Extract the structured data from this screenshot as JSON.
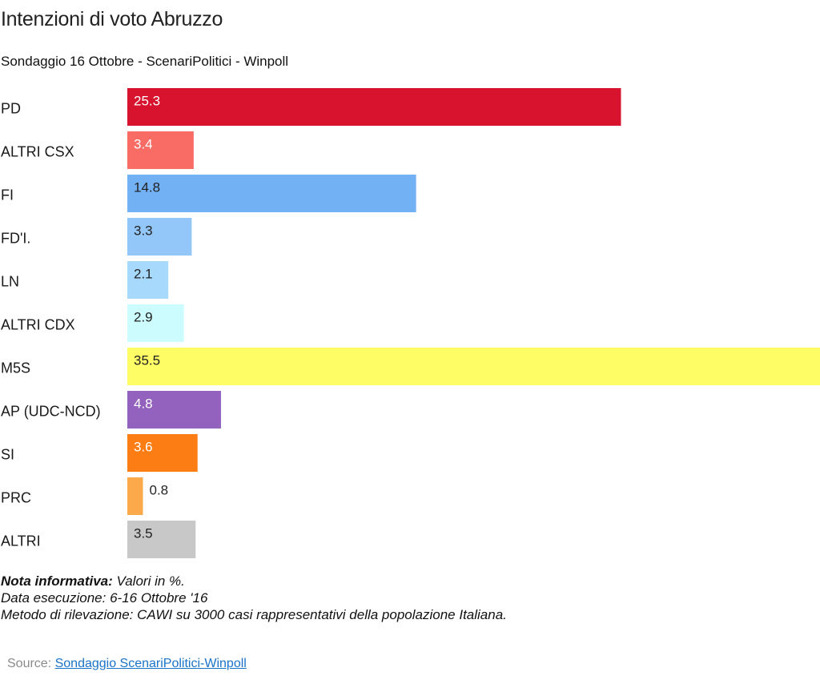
{
  "chart_data": {
    "type": "bar",
    "orientation": "horizontal",
    "title": "Intenzioni di voto Abruzzo",
    "subtitle": "Sondaggio 16 Ottobre - ScenariPolitici - Winpoll",
    "categories": [
      "PD",
      "ALTRI CSX",
      "FI",
      "FD'I.",
      "LN",
      "ALTRI CDX",
      "M5S",
      "AP (UDC-NCD)",
      "SI",
      "PRC",
      "ALTRI"
    ],
    "values": [
      25.3,
      3.4,
      14.8,
      3.3,
      2.1,
      2.9,
      35.5,
      4.8,
      3.6,
      0.8,
      3.5
    ],
    "data_labels": [
      "25.3",
      "3.4",
      "14.8",
      "3.3",
      "2.1",
      "2.9",
      "35.5",
      "4.8",
      "3.6",
      "0.8",
      "3.5"
    ],
    "colors": [
      "#d7132d",
      "#f86c65",
      "#72b1f4",
      "#93c7fa",
      "#a6d9fc",
      "#ccfcfe",
      "#fefd66",
      "#9362bf",
      "#fc7d14",
      "#fba94a",
      "#c8c8c8"
    ],
    "label_colors": [
      "#ffffff",
      "#ffffff",
      "#222222",
      "#222222",
      "#222222",
      "#222222",
      "#222222",
      "#ffffff",
      "#ffffff",
      "#222222",
      "#222222"
    ],
    "xlim": [
      0,
      35.5
    ],
    "grid": false,
    "legend": false
  },
  "notes": {
    "line1_bold": "Nota informativa:",
    "line1_rest": " Valori in %.",
    "line2": "Data esecuzione: 6-16  Ottobre '16",
    "line3": "Metodo di rilevazione: CAWI su 3000 casi rappresentativi della popolazione Italiana."
  },
  "source": {
    "label": "Source: ",
    "link_text": "Sondaggio ScenariPolitici-Winpoll"
  }
}
